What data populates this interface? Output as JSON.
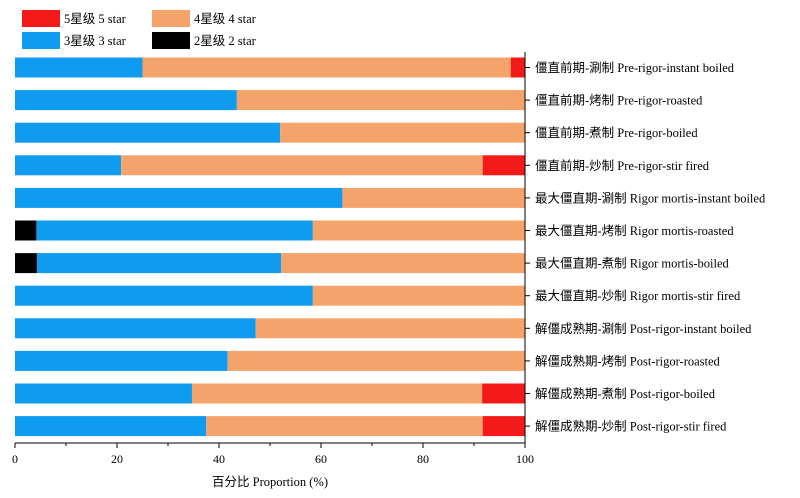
{
  "chart_data": {
    "type": "bar",
    "orientation": "horizontal",
    "stacked": true,
    "xlabel": "百分比 Proportion (%)",
    "ylabel": "",
    "xlim": [
      0,
      100
    ],
    "xticks": [
      0,
      20,
      40,
      60,
      80,
      100
    ],
    "legend_position": "top-left",
    "categories": [
      "僵直前期-涮制 Pre-rigor-instant boiled",
      "僵直前期-烤制 Pre-rigor-roasted",
      "僵直前期-煮制 Pre-rigor-boiled",
      "僵直前期-炒制 Pre-rigor-stir fired",
      "最大僵直期-涮制 Rigor mortis-instant boiled",
      "最大僵直期-烤制 Rigor mortis-roasted",
      "最大僵直期-煮制 Rigor mortis-boiled",
      "最大僵直期-炒制 Rigor mortis-stir fired",
      "解僵成熟期-涮制 Post-rigor-instant boiled",
      "解僵成熟期-烤制 Post-rigor-roasted",
      "解僵成熟期-煮制 Post-rigor-boiled",
      "解僵成熟期-炒制 Post-rigor-stir fired"
    ],
    "series": [
      {
        "name": "2星级 2 star",
        "color": "#000000",
        "values": [
          0,
          0,
          0,
          0,
          0,
          4.2,
          4.3,
          0,
          0,
          0,
          0,
          0
        ]
      },
      {
        "name": "3星级 3 star",
        "color": "#0f9bf0",
        "values": [
          25,
          43.5,
          52,
          20.8,
          64.2,
          54.2,
          47.9,
          58.4,
          47.2,
          41.7,
          34.7,
          37.5
        ]
      },
      {
        "name": "4星级 4 star",
        "color": "#f4a46a",
        "values": [
          72.2,
          56.5,
          48,
          70.9,
          35.8,
          41.6,
          47.8,
          41.6,
          52.8,
          58.3,
          56.9,
          54.2
        ]
      },
      {
        "name": "5星级 5 star",
        "color": "#f51a1a",
        "values": [
          2.8,
          0,
          0,
          8.3,
          0,
          0,
          0,
          0,
          0,
          0,
          8.4,
          8.3
        ]
      }
    ],
    "legend_order": [
      "5星级 5 star",
      "4星级 4 star",
      "3星级 3 star",
      "2星级 2 star"
    ]
  }
}
